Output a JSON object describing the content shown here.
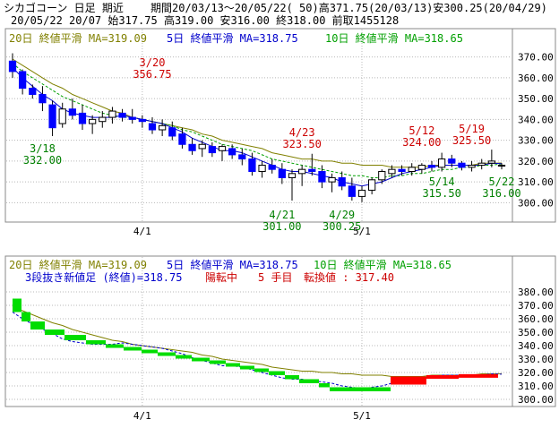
{
  "header": {
    "line1_left": "シカゴコーン 日足 期近",
    "line1_right": "期間20/03/13～20/05/22( 50)高371.75(20/03/13)安300.25(20/04/29)",
    "line2": "20/05/22 20/07 始317.75 高319.00 安316.00 終318.00 前取1455128"
  },
  "colors": {
    "ma20": "#808000",
    "ma5": "#0000cc",
    "ma10": "#00a000",
    "up": "#ffffff",
    "down": "#0000ff",
    "hl_high": "#cc0000",
    "hl_low": "#008000",
    "kagi_up": "#ff0000",
    "kagi_down": "#00dd00"
  },
  "legend_top": {
    "ma20": "20日 終値平滑 MA=319.09",
    "ma5": "5日 終値平滑 MA=318.75",
    "ma10": "10日 終値平滑 MA=318.65"
  },
  "legend_bottom": {
    "ma20": "20日 終値平滑 MA=319.09",
    "ma5": "5日 終値平滑 MA=318.75",
    "ma10": "10日 終値平滑 MA=318.65",
    "sub_a": "3段抜き新値足 (終値)=318.75",
    "sub_b": "陽転中",
    "sub_c": "5 手目",
    "sub_d": "転換値 : 317.40"
  },
  "chart_data": [
    {
      "type": "candlestick",
      "ylim": [
        295,
        375
      ],
      "y_ticks": [
        "300.00",
        "310.00",
        "320.00",
        "330.00",
        "340.00",
        "350.00",
        "360.00",
        "370.00"
      ],
      "x_ticks": [
        "4/1",
        "5/1"
      ],
      "annotations": [
        {
          "date": "3/20",
          "value": "356.75",
          "kind": "high"
        },
        {
          "date": "3/18",
          "value": "332.00",
          "kind": "low"
        },
        {
          "date": "4/23",
          "value": "323.50",
          "kind": "high"
        },
        {
          "date": "4/21",
          "value": "301.00",
          "kind": "low"
        },
        {
          "date": "4/29",
          "value": "300.25",
          "kind": "low"
        },
        {
          "date": "5/12",
          "value": "324.00",
          "kind": "high"
        },
        {
          "date": "5/19",
          "value": "325.50",
          "kind": "high"
        },
        {
          "date": "5/14",
          "value": "315.50",
          "kind": "low"
        },
        {
          "date": "5/22",
          "value": "316.00",
          "kind": "low"
        }
      ],
      "ohlc": [
        [
          368,
          371.75,
          360,
          363
        ],
        [
          363,
          364,
          352,
          355
        ],
        [
          355,
          356.75,
          350,
          352
        ],
        [
          352,
          356,
          344,
          348
        ],
        [
          347,
          349,
          332,
          336
        ],
        [
          338,
          348,
          336,
          345
        ],
        [
          345,
          350,
          340,
          342
        ],
        [
          343,
          347,
          335,
          338
        ],
        [
          338,
          342,
          333,
          340
        ],
        [
          339,
          344,
          336,
          341
        ],
        [
          341,
          346,
          338,
          344
        ],
        [
          343,
          345,
          339,
          341
        ],
        [
          341,
          345,
          338,
          340
        ],
        [
          340,
          342,
          336,
          339
        ],
        [
          338,
          341,
          333,
          335
        ],
        [
          335,
          340,
          332,
          337
        ],
        [
          336,
          339,
          330,
          332
        ],
        [
          333,
          336,
          326,
          328
        ],
        [
          328,
          331,
          323,
          325
        ],
        [
          326,
          330,
          322,
          328
        ],
        [
          327,
          329,
          322,
          324
        ],
        [
          325,
          328,
          320,
          327
        ],
        [
          326,
          328,
          321,
          323
        ],
        [
          323,
          326,
          318,
          321
        ],
        [
          321,
          324,
          313,
          315
        ],
        [
          315,
          320,
          312,
          318
        ],
        [
          318,
          321,
          314,
          316
        ],
        [
          316,
          319,
          309,
          312
        ],
        [
          312,
          316,
          301,
          314
        ],
        [
          314,
          318,
          308,
          316
        ],
        [
          316,
          323.5,
          313,
          315
        ],
        [
          315,
          318,
          307,
          310
        ],
        [
          310,
          314,
          305,
          312
        ],
        [
          312,
          315,
          306,
          308
        ],
        [
          308,
          312,
          301,
          303
        ],
        [
          303,
          308,
          300.25,
          306
        ],
        [
          306,
          312,
          304,
          311
        ],
        [
          311,
          316,
          309,
          315
        ],
        [
          314,
          318,
          312,
          316
        ],
        [
          316,
          318,
          313,
          315
        ],
        [
          315,
          319,
          313,
          317
        ],
        [
          316,
          319,
          314,
          318
        ],
        [
          318,
          320,
          315,
          317
        ],
        [
          317,
          324,
          315,
          321
        ],
        [
          321,
          323,
          317,
          319
        ],
        [
          319,
          320,
          315.5,
          317
        ],
        [
          317,
          320,
          315,
          318
        ],
        [
          318,
          321,
          316,
          319
        ],
        [
          319,
          325.5,
          317,
          320
        ],
        [
          317.75,
          319,
          316,
          318
        ]
      ],
      "ma20": [
        369,
        366,
        363,
        360,
        357,
        355,
        352,
        350,
        348,
        346,
        344,
        343,
        341,
        340,
        339,
        338,
        337,
        336,
        335,
        333,
        332,
        330,
        329,
        328,
        327,
        326,
        324,
        323,
        322,
        321,
        321,
        320,
        320,
        319,
        319,
        318,
        318,
        318,
        317,
        317,
        317,
        317,
        318,
        318,
        318,
        318,
        318,
        319,
        319,
        319.09
      ],
      "ma5": [
        365,
        360,
        356,
        352,
        349,
        345,
        343,
        342,
        341,
        341,
        341,
        342,
        341,
        340,
        339,
        338,
        336,
        334,
        331,
        329,
        327,
        325,
        325,
        324,
        322,
        320,
        318,
        316,
        315,
        315,
        314,
        313,
        312,
        310,
        309,
        308,
        309,
        310,
        312,
        314,
        315,
        316,
        317,
        318,
        318,
        318,
        318,
        318,
        319,
        318.75
      ],
      "ma10": [
        367,
        363,
        360,
        357,
        354,
        351,
        349,
        347,
        345,
        343,
        342,
        341,
        341,
        340,
        339,
        338,
        337,
        335,
        334,
        332,
        330,
        328,
        327,
        326,
        325,
        323,
        321,
        320,
        319,
        318,
        317,
        316,
        315,
        314,
        313,
        313,
        312,
        312,
        313,
        313,
        314,
        314,
        315,
        316,
        316,
        317,
        317,
        318,
        318,
        318.65
      ]
    },
    {
      "type": "bar",
      "ylim": [
        296,
        384
      ],
      "y_ticks": [
        "300.00",
        "310.00",
        "320.00",
        "330.00",
        "340.00",
        "350.00",
        "360.00",
        "370.00",
        "380.00"
      ],
      "x_ticks": [
        "4/1",
        "5/1"
      ],
      "kagi_blocks": [
        {
          "from": 375,
          "to": 365,
          "dir": "down"
        },
        {
          "from": 365,
          "to": 358,
          "dir": "down"
        },
        {
          "from": 358,
          "to": 352,
          "dir": "down"
        },
        {
          "from": 352,
          "to": 348,
          "dir": "down"
        },
        {
          "from": 348,
          "to": 344,
          "dir": "down"
        },
        {
          "from": 344,
          "to": 341,
          "dir": "down"
        },
        {
          "from": 341,
          "to": 339,
          "dir": "down"
        },
        {
          "from": 339,
          "to": 337,
          "dir": "down"
        },
        {
          "from": 337,
          "to": 335,
          "dir": "down"
        },
        {
          "from": 335,
          "to": 333,
          "dir": "down"
        },
        {
          "from": 333,
          "to": 331,
          "dir": "down"
        },
        {
          "from": 331,
          "to": 329,
          "dir": "down"
        },
        {
          "from": 329,
          "to": 327,
          "dir": "down"
        },
        {
          "from": 327,
          "to": 325,
          "dir": "down"
        },
        {
          "from": 325,
          "to": 323,
          "dir": "down"
        },
        {
          "from": 323,
          "to": 321,
          "dir": "down"
        },
        {
          "from": 321,
          "to": 318,
          "dir": "down"
        },
        {
          "from": 318,
          "to": 315,
          "dir": "down"
        },
        {
          "from": 315,
          "to": 312,
          "dir": "down"
        },
        {
          "from": 312,
          "to": 309,
          "dir": "down"
        },
        {
          "from": 309,
          "to": 306,
          "dir": "down"
        },
        {
          "from": 311,
          "to": 317,
          "dir": "up"
        },
        {
          "from": 317,
          "to": 318,
          "dir": "up"
        },
        {
          "from": 318,
          "to": 318.75,
          "dir": "up"
        }
      ],
      "ma20": [
        369,
        366,
        363,
        360,
        357,
        355,
        352,
        350,
        348,
        346,
        344,
        343,
        341,
        340,
        339,
        338,
        337,
        336,
        335,
        333,
        332,
        330,
        329,
        328,
        327,
        326,
        324,
        323,
        322,
        321,
        321,
        320,
        320,
        319,
        319,
        318,
        318,
        318,
        317,
        317,
        317,
        317,
        318,
        318,
        318,
        318,
        318,
        319,
        319,
        319.09
      ],
      "ma5": [
        365,
        360,
        356,
        352,
        349,
        345,
        343,
        342,
        341,
        341,
        341,
        342,
        341,
        340,
        339,
        338,
        336,
        334,
        331,
        329,
        327,
        325,
        325,
        324,
        322,
        320,
        318,
        316,
        315,
        315,
        314,
        313,
        312,
        310,
        309,
        308,
        309,
        310,
        312,
        314,
        315,
        316,
        317,
        318,
        318,
        318,
        318,
        318,
        319,
        318.75
      ]
    }
  ]
}
